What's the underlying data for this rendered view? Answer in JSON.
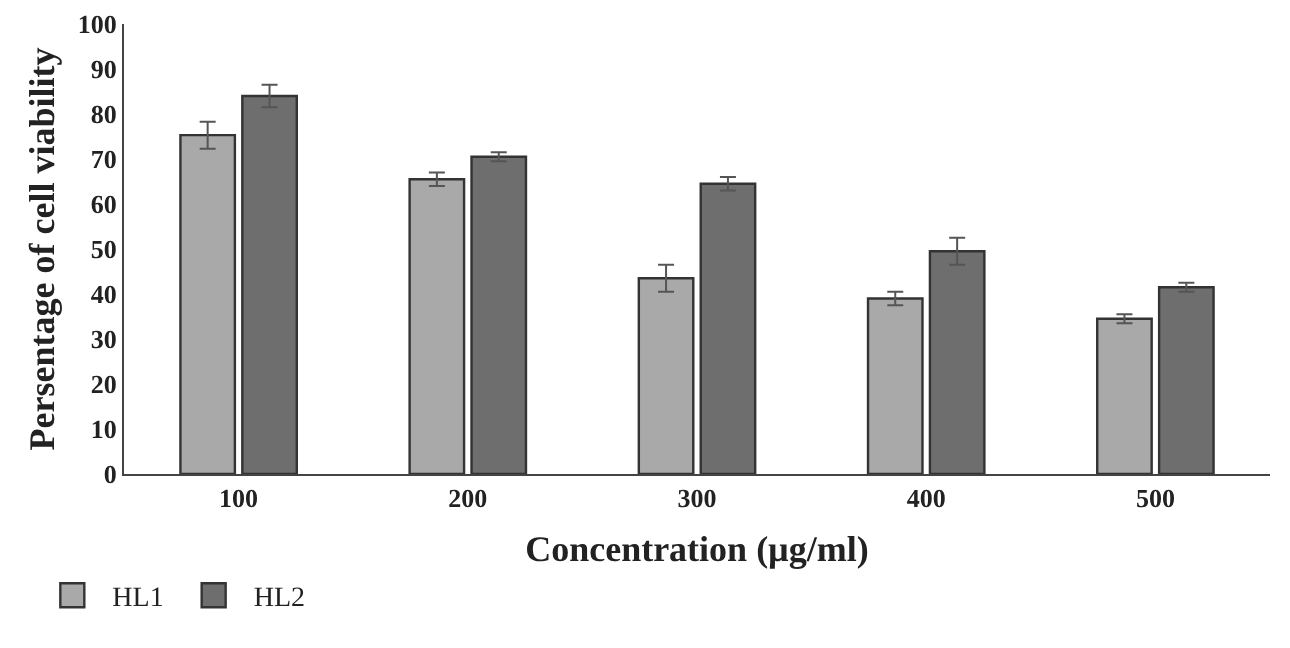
{
  "chart_data": {
    "type": "bar",
    "xlabel": "Concentration (µg/ml)",
    "ylabel": "Persentage of cell viability",
    "categories": [
      "100",
      "200",
      "300",
      "400",
      "500"
    ],
    "series": [
      {
        "name": "HL1",
        "color": "#a9a9a9",
        "values": [
          75.3,
          65.5,
          43.5,
          39,
          34.5
        ],
        "errors": [
          3,
          1.5,
          3,
          1.5,
          1
        ]
      },
      {
        "name": "HL2",
        "color": "#6e6e6e",
        "values": [
          84,
          70.5,
          64.5,
          49.5,
          41.5
        ],
        "errors": [
          2.5,
          1,
          1.5,
          3,
          1
        ]
      }
    ],
    "ylim": [
      0,
      100
    ],
    "yticks": [
      0,
      10,
      20,
      30,
      40,
      50,
      60,
      70,
      80,
      90,
      100
    ],
    "grid": false,
    "legend": "bottom left"
  }
}
